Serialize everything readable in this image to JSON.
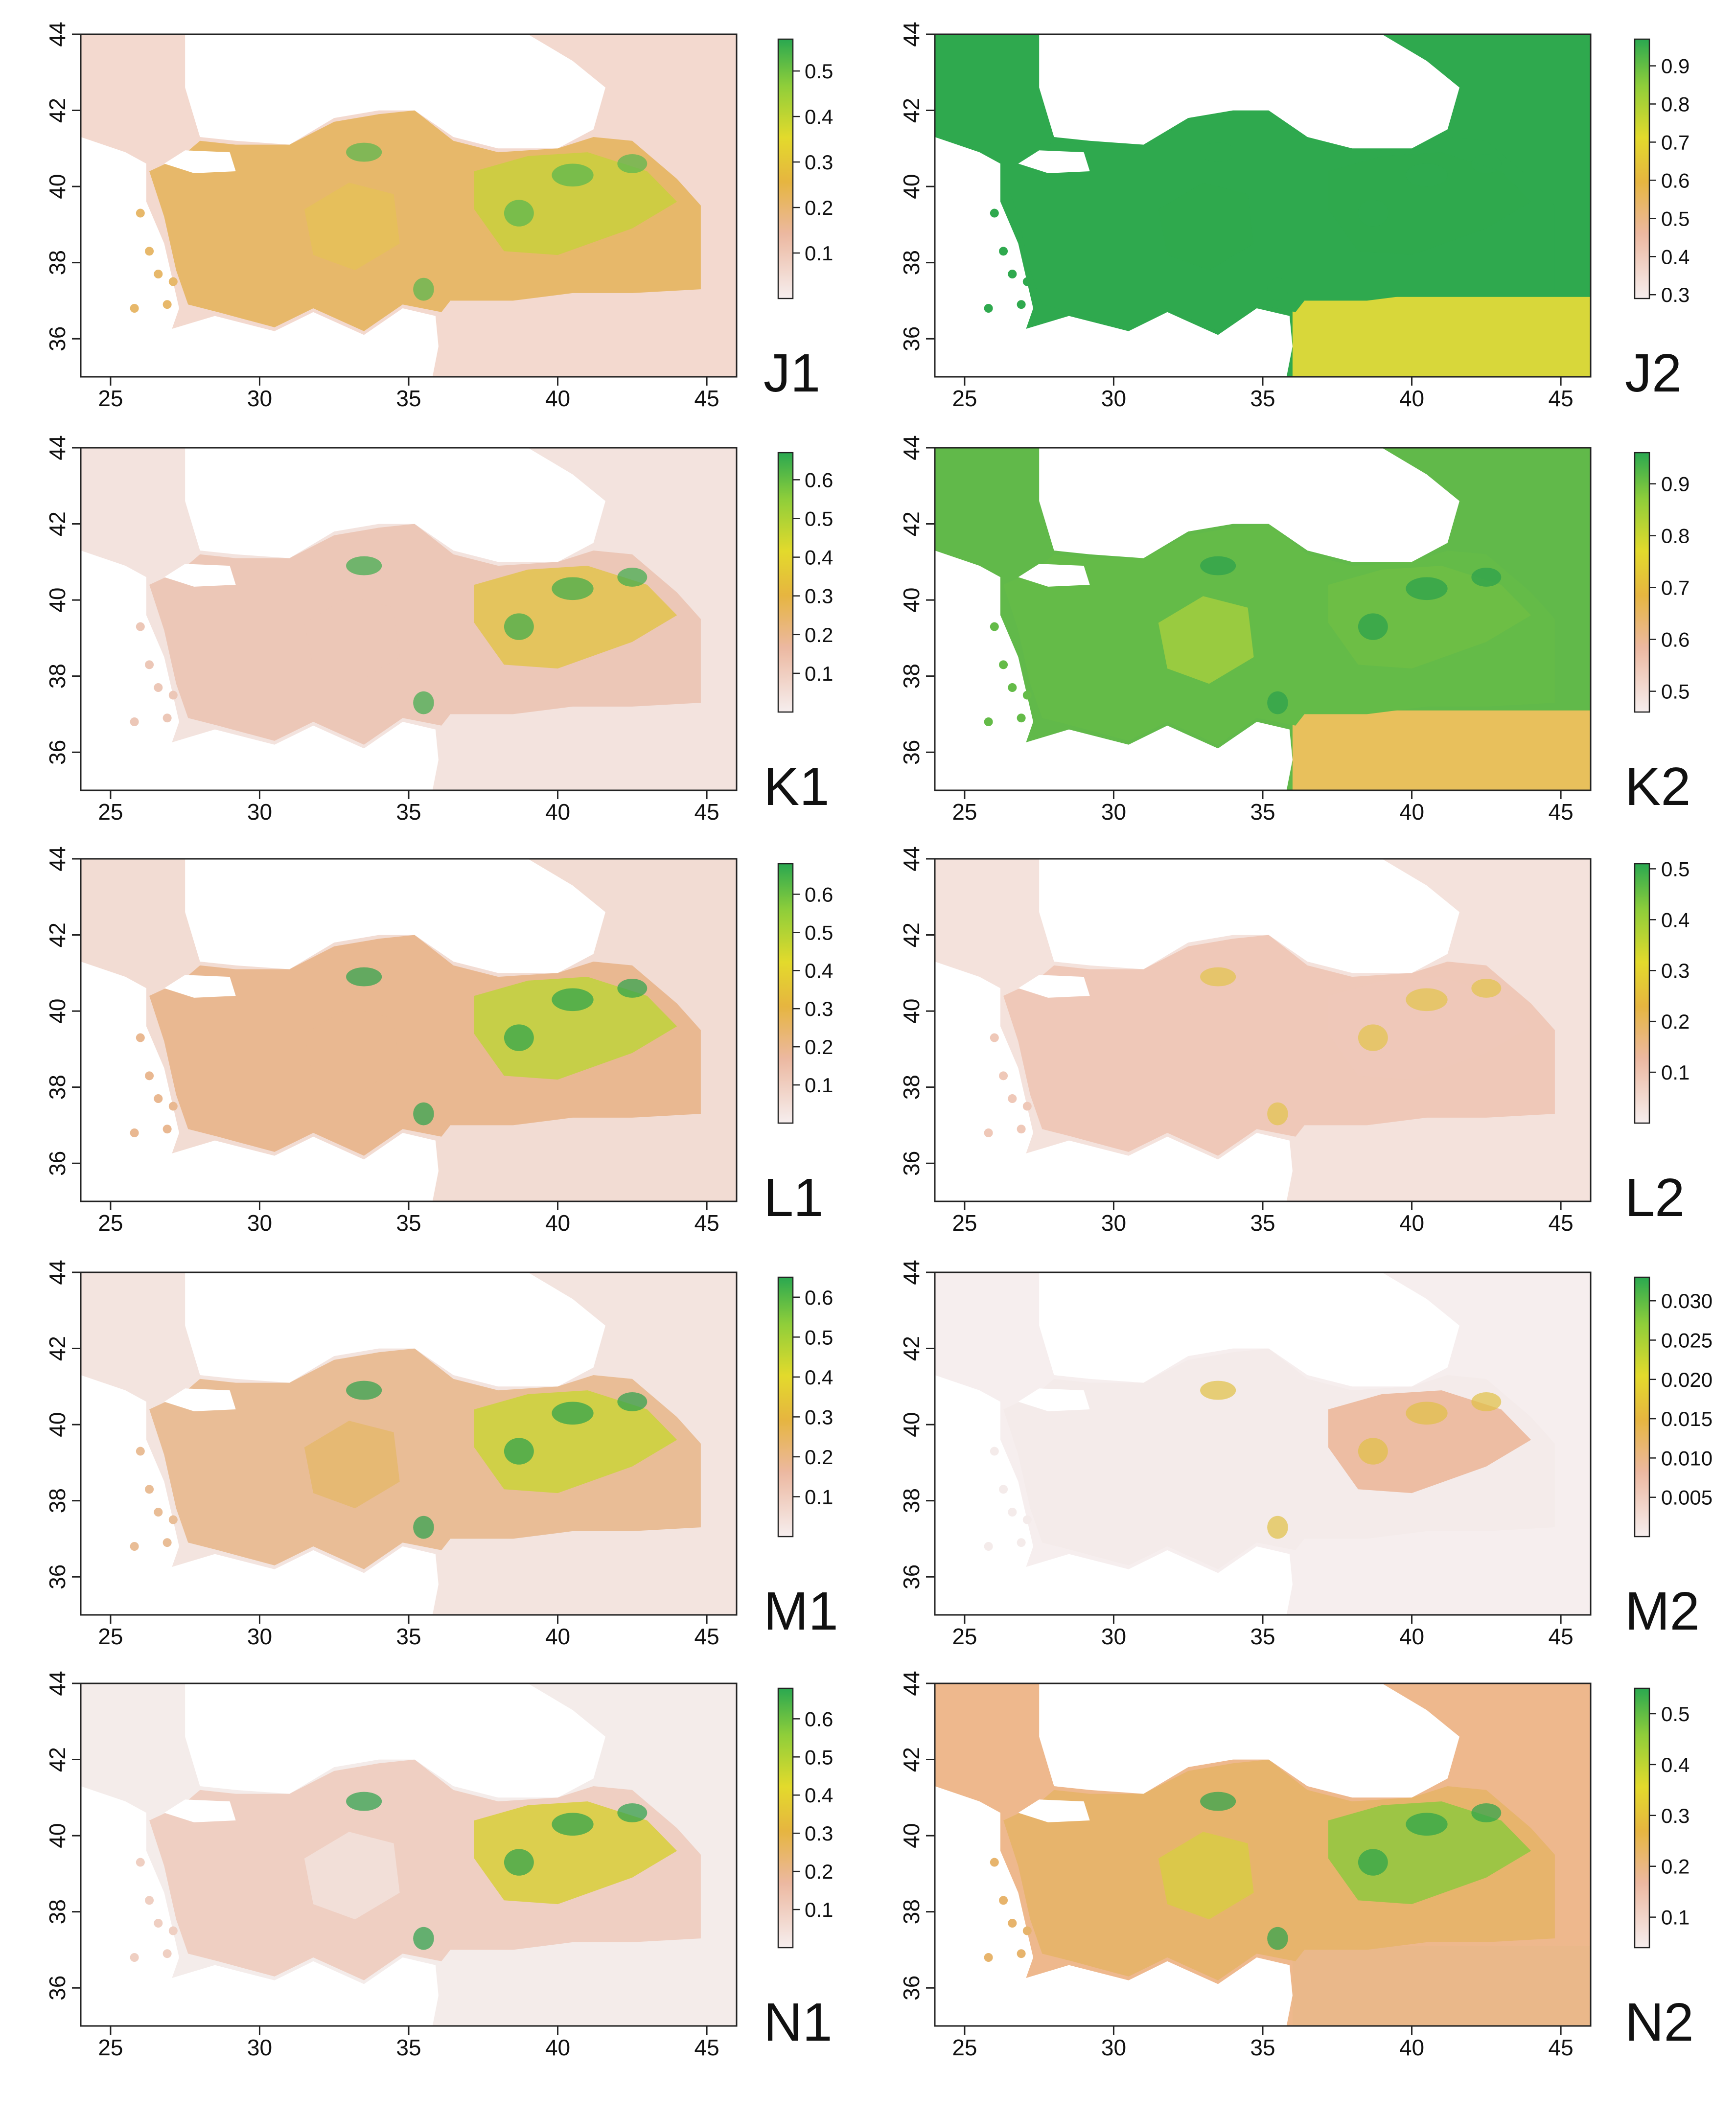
{
  "figure": {
    "description_free": true,
    "axes": {
      "x_ticks": [
        "25",
        "30",
        "35",
        "40",
        "45"
      ],
      "y_ticks": [
        "36",
        "38",
        "40",
        "42",
        "44"
      ],
      "x_values": [
        25,
        30,
        35,
        40,
        45
      ],
      "y_values": [
        36,
        38,
        40,
        42,
        44
      ],
      "x_range": [
        24,
        46
      ],
      "y_range": [
        35,
        44
      ]
    },
    "colors": {
      "ramp": [
        "#f6eeee",
        "#ecb8a0",
        "#e6b540",
        "#e3da2c",
        "#8fce3a",
        "#2aa850"
      ],
      "frame": "#222222",
      "text": "#111111",
      "land_fill_high": "#35ad4e",
      "land_fill_mid": "#d8c655",
      "land_fill_low": "#f1d6cb",
      "sea": "#ffffff"
    },
    "panels": [
      {
        "id": "J1",
        "label": "J1",
        "legend_ticks": [
          "0.5",
          "0.4",
          "0.3",
          "0.2",
          "0.1"
        ],
        "legend_values": [
          0.5,
          0.4,
          0.3,
          0.2,
          0.1
        ],
        "legend_range": [
          0.0,
          0.57
        ]
      },
      {
        "id": "J2",
        "label": "J2",
        "legend_ticks": [
          "0.9",
          "0.8",
          "0.7",
          "0.6",
          "0.5",
          "0.4",
          "0.3"
        ],
        "legend_values": [
          0.9,
          0.8,
          0.7,
          0.6,
          0.5,
          0.4,
          0.3
        ],
        "legend_range": [
          0.29,
          0.97
        ]
      },
      {
        "id": "K1",
        "label": "K1",
        "legend_ticks": [
          "0.6",
          "0.5",
          "0.4",
          "0.3",
          "0.2",
          "0.1"
        ],
        "legend_values": [
          0.6,
          0.5,
          0.4,
          0.3,
          0.2,
          0.1
        ],
        "legend_range": [
          0.0,
          0.67
        ]
      },
      {
        "id": "K2",
        "label": "K2",
        "legend_ticks": [
          "0.9",
          "0.8",
          "0.7",
          "0.6",
          "0.5"
        ],
        "legend_values": [
          0.9,
          0.8,
          0.7,
          0.6,
          0.5
        ],
        "legend_range": [
          0.46,
          0.96
        ]
      },
      {
        "id": "L1",
        "label": "L1",
        "legend_ticks": [
          "0.6",
          "0.5",
          "0.4",
          "0.3",
          "0.2",
          "0.1"
        ],
        "legend_values": [
          0.6,
          0.5,
          0.4,
          0.3,
          0.2,
          0.1
        ],
        "legend_range": [
          0.0,
          0.68
        ]
      },
      {
        "id": "L2",
        "label": "L2",
        "legend_ticks": [
          "0.5",
          "0.4",
          "0.3",
          "0.2",
          "0.1"
        ],
        "legend_values": [
          0.5,
          0.4,
          0.3,
          0.2,
          0.1
        ],
        "legend_range": [
          0.0,
          0.51
        ]
      },
      {
        "id": "M1",
        "label": "M1",
        "legend_ticks": [
          "0.6",
          "0.5",
          "0.4",
          "0.3",
          "0.2",
          "0.1"
        ],
        "legend_values": [
          0.6,
          0.5,
          0.4,
          0.3,
          0.2,
          0.1
        ],
        "legend_range": [
          0.0,
          0.65
        ]
      },
      {
        "id": "M2",
        "label": "M2",
        "legend_ticks": [
          "0.030",
          "0.025",
          "0.020",
          "0.015",
          "0.010",
          "0.005"
        ],
        "legend_values": [
          0.03,
          0.025,
          0.02,
          0.015,
          0.01,
          0.005
        ],
        "legend_range": [
          0.0,
          0.033
        ]
      },
      {
        "id": "N1",
        "label": "N1",
        "legend_ticks": [
          "0.6",
          "0.5",
          "0.4",
          "0.3",
          "0.2",
          "0.1"
        ],
        "legend_values": [
          0.6,
          0.5,
          0.4,
          0.3,
          0.2,
          0.1
        ],
        "legend_range": [
          0.0,
          0.68
        ]
      },
      {
        "id": "N2",
        "label": "N2",
        "legend_ticks": [
          "0.5",
          "0.4",
          "0.3",
          "0.2",
          "0.1"
        ],
        "legend_values": [
          0.5,
          0.4,
          0.3,
          0.2,
          0.1
        ],
        "legend_range": [
          0.04,
          0.55
        ]
      }
    ]
  }
}
